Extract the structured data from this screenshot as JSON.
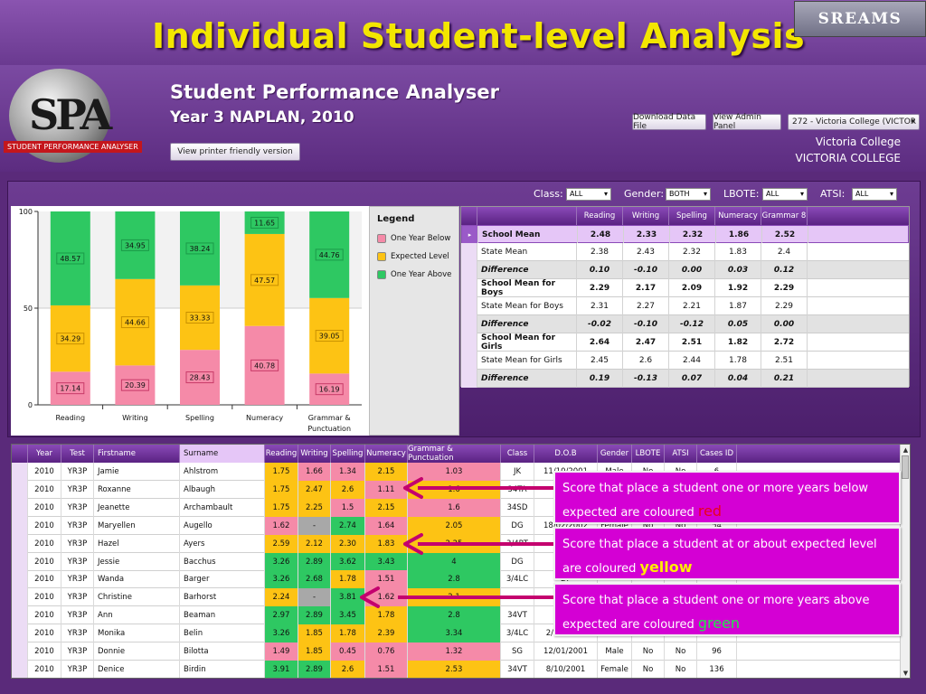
{
  "slide": {
    "title": "Individual Student-level Analysis",
    "brand": "SREAMS"
  },
  "app": {
    "logo_text": "SPA",
    "logo_band": "STUDENT PERFORMANCE ANALYSER",
    "title": "Student Performance Analyser",
    "subtitle": "Year 3 NAPLAN, 2010",
    "printer_button": "View printer friendly version",
    "download_button": "Download Data File",
    "admin_button": "View Admin Panel",
    "school_select": "272 - Victoria College (VICTOR",
    "school_name_1": "Victoria College",
    "school_name_2": "VICTORIA COLLEGE"
  },
  "filters": {
    "class_label": "Class:",
    "class_value": "ALL",
    "gender_label": "Gender:",
    "gender_value": "BOTH",
    "lbote_label": "LBOTE:",
    "lbote_value": "ALL",
    "atsi_label": "ATSI:",
    "atsi_value": "ALL"
  },
  "colors": {
    "below": "#f58aa8",
    "expected": "#fdc314",
    "above": "#2ec862",
    "title_yellow": "#f3e600",
    "purple_header": "#5a2282",
    "callout_magenta": "#d400d4"
  },
  "chart_data": {
    "type": "bar",
    "stacked": true,
    "title": "",
    "xlabel": "",
    "ylabel": "",
    "ylim": [
      0,
      100
    ],
    "yticks": [
      "0",
      "50",
      "100"
    ],
    "categories": [
      "Reading",
      "Writing",
      "Spelling",
      "Numeracy",
      "Grammar & Punctuation"
    ],
    "category_lines": [
      [
        "Reading"
      ],
      [
        "Writing"
      ],
      [
        "Spelling"
      ],
      [
        "Numeracy"
      ],
      [
        "Grammar &",
        "Punctuation"
      ]
    ],
    "series": [
      {
        "name": "One Year Below",
        "color": "#f58aa8",
        "values": [
          17.14,
          20.39,
          28.43,
          40.78,
          16.19
        ]
      },
      {
        "name": "Expected Level",
        "color": "#fdc314",
        "values": [
          34.29,
          44.66,
          33.33,
          47.57,
          39.05
        ]
      },
      {
        "name": "One Year Above",
        "color": "#2ec862",
        "values": [
          48.57,
          34.95,
          38.24,
          11.65,
          44.76
        ]
      }
    ],
    "legend_title": "Legend",
    "legend_position": "right"
  },
  "mean_table": {
    "headers": [
      "Reading",
      "Writing",
      "Spelling",
      "Numeracy",
      "Grammar 8"
    ],
    "rows": [
      {
        "label": "School Mean",
        "values": [
          "2.48",
          "2.33",
          "2.32",
          "1.86",
          "2.52"
        ],
        "style": "selected"
      },
      {
        "label": "State Mean",
        "values": [
          "2.38",
          "2.43",
          "2.32",
          "1.83",
          "2.4"
        ],
        "style": "plain"
      },
      {
        "label": "Difference",
        "values": [
          "0.10",
          "-0.10",
          "0.00",
          "0.03",
          "0.12"
        ],
        "style": "diff"
      },
      {
        "label": "School Mean for Boys",
        "values": [
          "2.29",
          "2.17",
          "2.09",
          "1.92",
          "2.29"
        ],
        "style": "boldrow"
      },
      {
        "label": "State Mean for Boys",
        "values": [
          "2.31",
          "2.27",
          "2.21",
          "1.87",
          "2.29"
        ],
        "style": "plain"
      },
      {
        "label": "Difference",
        "values": [
          "-0.02",
          "-0.10",
          "-0.12",
          "0.05",
          "0.00"
        ],
        "style": "diff"
      },
      {
        "label": "School Mean for Girls",
        "values": [
          "2.64",
          "2.47",
          "2.51",
          "1.82",
          "2.72"
        ],
        "style": "boldrow"
      },
      {
        "label": "State Mean for Girls",
        "values": [
          "2.45",
          "2.6",
          "2.44",
          "1.78",
          "2.51"
        ],
        "style": "plain"
      },
      {
        "label": "Difference",
        "values": [
          "0.19",
          "-0.13",
          "0.07",
          "0.04",
          "0.21"
        ],
        "style": "diff"
      }
    ]
  },
  "student_table": {
    "headers": [
      "Year",
      "Test",
      "Firstname",
      "Surname",
      "Reading",
      "Writing",
      "Spelling",
      "Numeracy",
      "Grammar & Punctuation",
      "Class",
      "D.O.B",
      "Gender",
      "LBOTE",
      "ATSI",
      "Cases ID"
    ],
    "rows": [
      {
        "year": "2010",
        "test": "YR3P",
        "first": "Jamie",
        "last": "Ahlstrom",
        "scores": [
          "1.75",
          "1.66",
          "1.34",
          "2.15",
          "1.03"
        ],
        "colors": [
          "yellow",
          "red",
          "red",
          "yellow",
          "red"
        ],
        "cls": "JK",
        "dob": "11/10/2001",
        "gender": "Male",
        "lbote": "No",
        "atsi": "No",
        "id": "6"
      },
      {
        "year": "2010",
        "test": "YR3P",
        "first": "Roxanne",
        "last": "Albaugh",
        "scores": [
          "1.75",
          "2.47",
          "2.6",
          "1.11",
          "1.6"
        ],
        "colors": [
          "yellow",
          "yellow",
          "yellow",
          "red",
          "yellow"
        ],
        "cls": "34TA",
        "dob": "",
        "gender": "",
        "lbote": "",
        "atsi": "",
        "id": ""
      },
      {
        "year": "2010",
        "test": "YR3P",
        "first": "Jeanette",
        "last": "Archambault",
        "scores": [
          "1.75",
          "2.25",
          "1.5",
          "2.15",
          "1.6"
        ],
        "colors": [
          "yellow",
          "yellow",
          "red",
          "yellow",
          "red"
        ],
        "cls": "34SD",
        "dob": "28",
        "gender": "",
        "lbote": "",
        "atsi": "",
        "id": ""
      },
      {
        "year": "2010",
        "test": "YR3P",
        "first": "Maryellen",
        "last": "Augello",
        "scores": [
          "1.62",
          "-",
          "2.74",
          "1.64",
          "2.05"
        ],
        "colors": [
          "red",
          "gray",
          "green",
          "red",
          "yellow"
        ],
        "cls": "DG",
        "dob": "18/02/2002",
        "gender": "Female",
        "lbote": "No",
        "atsi": "No",
        "id": "54"
      },
      {
        "year": "2010",
        "test": "YR3P",
        "first": "Hazel",
        "last": "Ayers",
        "scores": [
          "2.59",
          "2.12",
          "2.30",
          "1.83",
          "2.25"
        ],
        "colors": [
          "yellow",
          "yellow",
          "yellow",
          "yellow",
          "yellow"
        ],
        "cls": "3/4PT",
        "dob": "",
        "gender": "",
        "lbote": "",
        "atsi": "",
        "id": ""
      },
      {
        "year": "2010",
        "test": "YR3P",
        "first": "Jessie",
        "last": "Bacchus",
        "scores": [
          "3.26",
          "2.89",
          "3.62",
          "3.43",
          "4"
        ],
        "colors": [
          "green",
          "green",
          "green",
          "green",
          "green"
        ],
        "cls": "DG",
        "dob": "1",
        "gender": "",
        "lbote": "",
        "atsi": "",
        "id": ""
      },
      {
        "year": "2010",
        "test": "YR3P",
        "first": "Wanda",
        "last": "Barger",
        "scores": [
          "3.26",
          "2.68",
          "1.78",
          "1.51",
          "2.8"
        ],
        "colors": [
          "green",
          "green",
          "yellow",
          "red",
          "green"
        ],
        "cls": "3/4LC",
        "dob": "27",
        "gender": "",
        "lbote": "",
        "atsi": "",
        "id": ""
      },
      {
        "year": "2010",
        "test": "YR3P",
        "first": "Christine",
        "last": "Barhorst",
        "scores": [
          "2.24",
          "-",
          "3.81",
          "1.62",
          "2.1"
        ],
        "colors": [
          "yellow",
          "gray",
          "green",
          "red",
          "yellow"
        ],
        "cls": "",
        "dob": "",
        "gender": "",
        "lbote": "",
        "atsi": "",
        "id": ""
      },
      {
        "year": "2010",
        "test": "YR3P",
        "first": "Ann",
        "last": "Beaman",
        "scores": [
          "2.97",
          "2.89",
          "3.45",
          "1.78",
          "2.8"
        ],
        "colors": [
          "green",
          "green",
          "green",
          "yellow",
          "green"
        ],
        "cls": "34VT",
        "dob": "15",
        "gender": "",
        "lbote": "",
        "atsi": "",
        "id": ""
      },
      {
        "year": "2010",
        "test": "YR3P",
        "first": "Monika",
        "last": "Belin",
        "scores": [
          "3.26",
          "1.85",
          "1.78",
          "2.39",
          "3.34"
        ],
        "colors": [
          "green",
          "yellow",
          "yellow",
          "yellow",
          "green"
        ],
        "cls": "3/4LC",
        "dob": "2/09/2001",
        "gender": "Female",
        "lbote": "No",
        "atsi": "No",
        "id": "107"
      },
      {
        "year": "2010",
        "test": "YR3P",
        "first": "Donnie",
        "last": "Bilotta",
        "scores": [
          "1.49",
          "1.85",
          "0.45",
          "0.76",
          "1.32"
        ],
        "colors": [
          "red",
          "yellow",
          "red",
          "red",
          "red"
        ],
        "cls": "SG",
        "dob": "12/01/2001",
        "gender": "Male",
        "lbote": "No",
        "atsi": "No",
        "id": "96"
      },
      {
        "year": "2010",
        "test": "YR3P",
        "first": "Denice",
        "last": "Birdin",
        "scores": [
          "3.91",
          "2.89",
          "2.6",
          "1.51",
          "2.53"
        ],
        "colors": [
          "green",
          "green",
          "yellow",
          "red",
          "yellow"
        ],
        "cls": "34VT",
        "dob": "8/10/2001",
        "gender": "Female",
        "lbote": "No",
        "atsi": "No",
        "id": "136"
      }
    ]
  },
  "callouts": [
    {
      "text": "Score that place a student one or more years below expected are coloured ",
      "highlight": "red",
      "kind": "red"
    },
    {
      "text": "Score that place a student at or about expected level are coloured ",
      "highlight": "yellow",
      "kind": "yellow"
    },
    {
      "text": "Score that place a student one or more years above expected are coloured ",
      "highlight": "green",
      "kind": "green"
    }
  ]
}
